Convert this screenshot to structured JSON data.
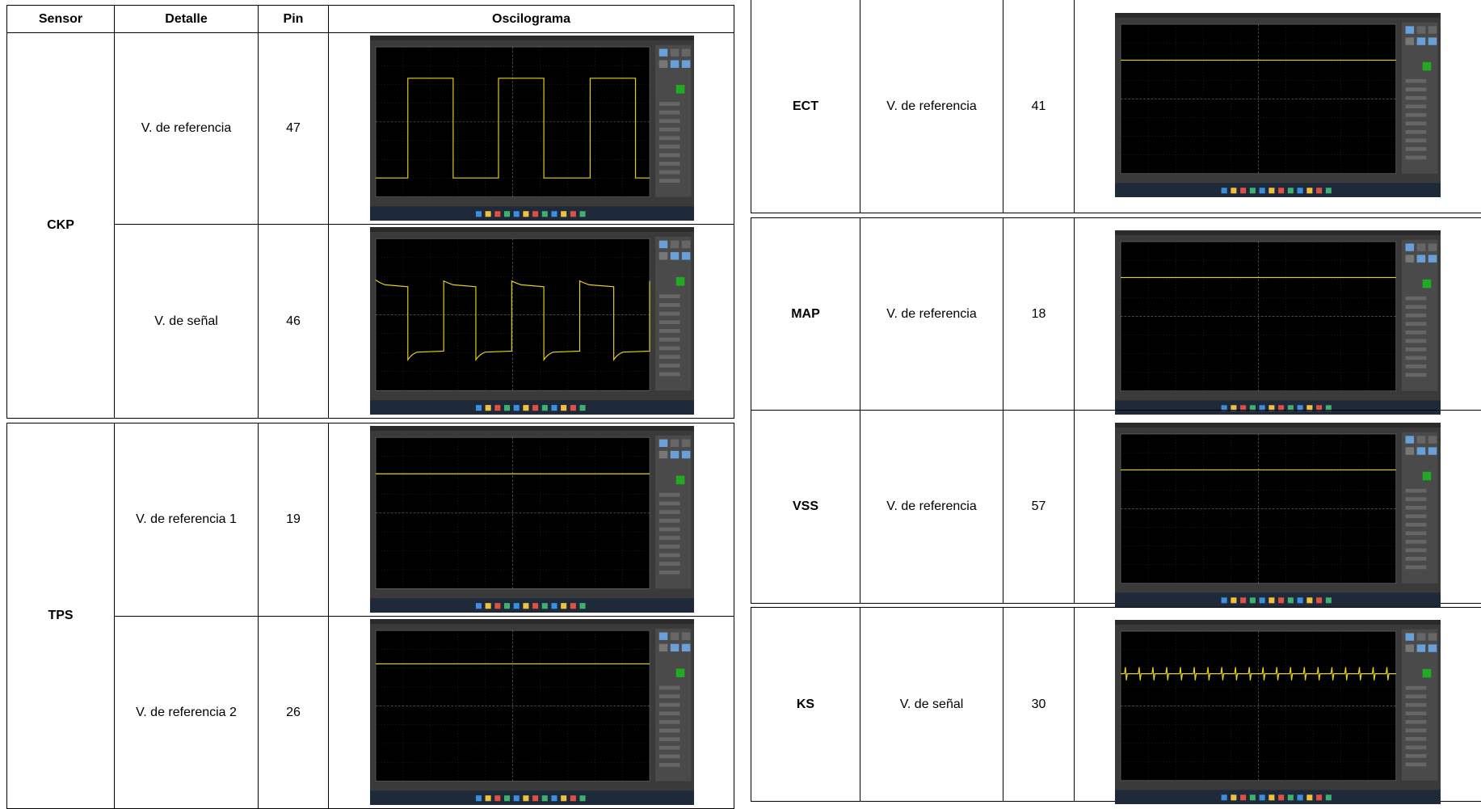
{
  "left_table": {
    "headers": [
      "Sensor",
      "Detalle",
      "Pin",
      "Oscilograma"
    ],
    "groups": [
      {
        "sensor": "CKP",
        "rows": [
          {
            "detail": "V. de referencia",
            "pin": 47
          },
          {
            "detail": "V. de señal",
            "pin": 46
          }
        ]
      },
      {
        "sensor": "TPS",
        "rows": [
          {
            "detail": "V. de referencia 1",
            "pin": 19
          },
          {
            "detail": "V. de referencia 2",
            "pin": 26
          }
        ]
      }
    ]
  },
  "right_table": {
    "rows": [
      {
        "sensor": "ECT",
        "detail": "V. de referencia",
        "pin": 41
      },
      {
        "sensor": "MAP",
        "detail": "V. de referencia",
        "pin": 18
      },
      {
        "sensor": "VSS",
        "detail": "V. de referencia",
        "pin": 57
      },
      {
        "sensor": "KS",
        "detail": "V. de señal",
        "pin": 30
      }
    ]
  }
}
